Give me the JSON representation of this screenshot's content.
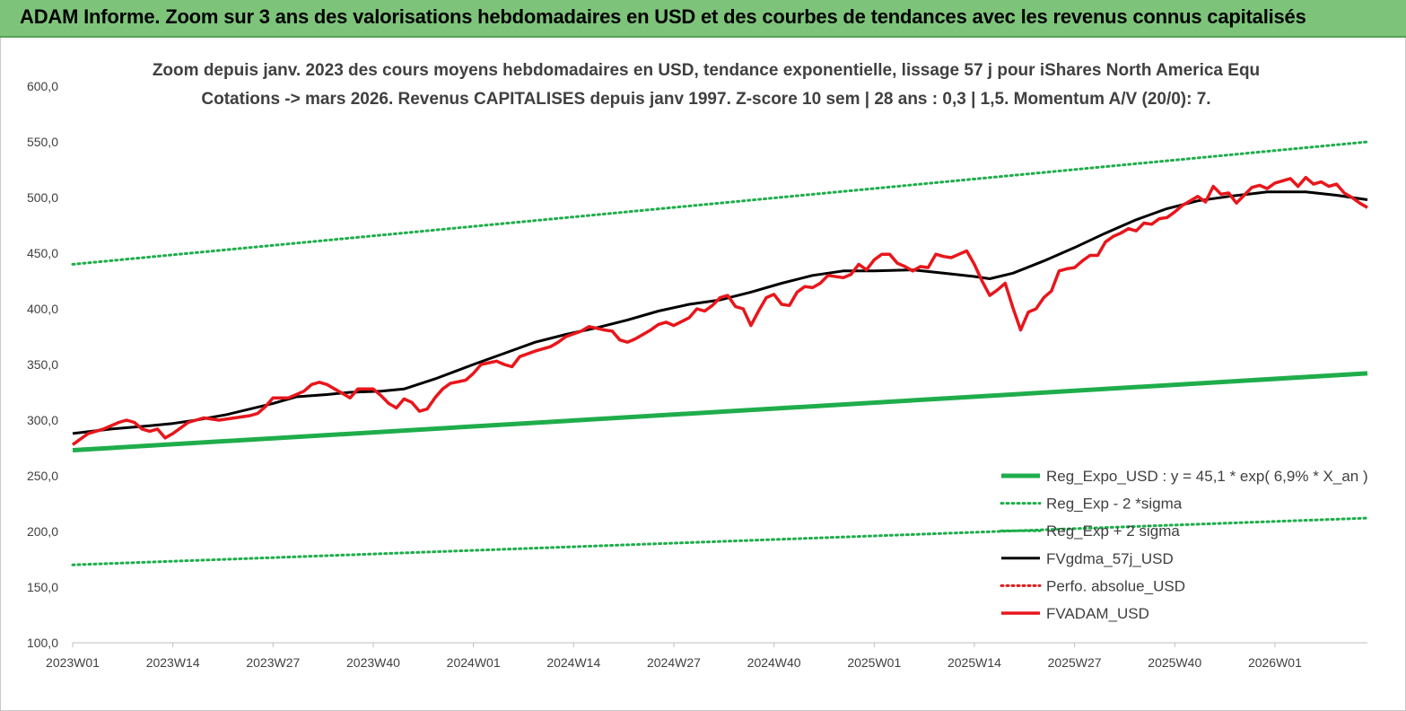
{
  "header": {
    "title": "ADAM Informe. Zoom sur 3 ans des valorisations hebdomadaires en USD et des courbes de tendances avec les revenus connus capitalisés"
  },
  "chart_data": {
    "type": "line",
    "subtitle_line1": "Zoom depuis janv. 2023 des cours moyens hebdomadaires en USD, tendance exponentielle, lissage 57 j pour iShares North America Equ",
    "subtitle_line2": "Cotations -> mars 2026. Revenus CAPITALISES depuis janv 1997. Z-score 10 sem | 28 ans : 0,3 | 1,5. Momentum A/V (20/0): 7.",
    "ylim": [
      100,
      600
    ],
    "yticks": [
      "100,0",
      "150,0",
      "200,0",
      "250,0",
      "300,0",
      "350,0",
      "400,0",
      "450,0",
      "500,0",
      "550,0",
      "600,0"
    ],
    "xticks": [
      "2023W01",
      "2023W14",
      "2023W27",
      "2023W40",
      "2024W01",
      "2024W14",
      "2024W27",
      "2024W40",
      "2025W01",
      "2025W14",
      "2025W27",
      "2025W40",
      "2026W01"
    ],
    "n_weeks": 169,
    "grid": false,
    "legend_position": "bottom-right",
    "series": [
      {
        "name": "Reg_Expo_USD : y = 45,1 * exp( 6,9% *  X_an )",
        "color": "#1fad4b",
        "style": "solid-thick",
        "points": [
          [
            0,
            273
          ],
          [
            168,
            342
          ]
        ]
      },
      {
        "name": "Reg_Exp - 2 *sigma",
        "color": "#1fad4b",
        "style": "dotted",
        "points": [
          [
            0,
            170
          ],
          [
            168,
            212
          ]
        ]
      },
      {
        "name": "Reg_Exp + 2 sigma",
        "color": "#1fad4b",
        "style": "dotted",
        "points": [
          [
            0,
            440
          ],
          [
            168,
            550
          ]
        ]
      },
      {
        "name": "FVgdma_57j_USD",
        "color": "#000000",
        "style": "solid",
        "points": [
          [
            0,
            288
          ],
          [
            5,
            292
          ],
          [
            10,
            295
          ],
          [
            13,
            297
          ],
          [
            16,
            300
          ],
          [
            20,
            305
          ],
          [
            26,
            315
          ],
          [
            29,
            321
          ],
          [
            33,
            323
          ],
          [
            36,
            325
          ],
          [
            40,
            326
          ],
          [
            43,
            328
          ],
          [
            47,
            337
          ],
          [
            52,
            350
          ],
          [
            56,
            360
          ],
          [
            60,
            370
          ],
          [
            64,
            377
          ],
          [
            68,
            383
          ],
          [
            72,
            390
          ],
          [
            76,
            398
          ],
          [
            80,
            404
          ],
          [
            84,
            408
          ],
          [
            88,
            415
          ],
          [
            92,
            423
          ],
          [
            96,
            430
          ],
          [
            100,
            434
          ],
          [
            104,
            434
          ],
          [
            109,
            435
          ],
          [
            113,
            432
          ],
          [
            117,
            429
          ],
          [
            119,
            427
          ],
          [
            122,
            432
          ],
          [
            126,
            443
          ],
          [
            130,
            455
          ],
          [
            134,
            468
          ],
          [
            138,
            480
          ],
          [
            142,
            490
          ],
          [
            146,
            497
          ],
          [
            150,
            501
          ],
          [
            155,
            505
          ],
          [
            160,
            505
          ],
          [
            164,
            502
          ],
          [
            168,
            498
          ]
        ]
      },
      {
        "name": "Perfo. absolue_USD",
        "color": "#e01b1b",
        "style": "dotted",
        "points": []
      },
      {
        "name": "FVADAM_USD",
        "color": "#e8161b",
        "style": "solid-thick",
        "points": [
          [
            0,
            278
          ],
          [
            2,
            288
          ],
          [
            4,
            292
          ],
          [
            6,
            298
          ],
          [
            7,
            300
          ],
          [
            8,
            298
          ],
          [
            9,
            292
          ],
          [
            10,
            290
          ],
          [
            11,
            292
          ],
          [
            12,
            284
          ],
          [
            13,
            288
          ],
          [
            14,
            293
          ],
          [
            15,
            298
          ],
          [
            17,
            302
          ],
          [
            19,
            300
          ],
          [
            21,
            302
          ],
          [
            23,
            304
          ],
          [
            24,
            306
          ],
          [
            25,
            312
          ],
          [
            26,
            320
          ],
          [
            28,
            320
          ],
          [
            30,
            326
          ],
          [
            31,
            332
          ],
          [
            32,
            334
          ],
          [
            33,
            332
          ],
          [
            34,
            328
          ],
          [
            35,
            324
          ],
          [
            36,
            320
          ],
          [
            37,
            328
          ],
          [
            39,
            328
          ],
          [
            40,
            322
          ],
          [
            41,
            315
          ],
          [
            42,
            311
          ],
          [
            43,
            319
          ],
          [
            44,
            316
          ],
          [
            45,
            308
          ],
          [
            46,
            310
          ],
          [
            47,
            320
          ],
          [
            48,
            328
          ],
          [
            49,
            333
          ],
          [
            51,
            336
          ],
          [
            52,
            342
          ],
          [
            53,
            350
          ],
          [
            55,
            353
          ],
          [
            56,
            350
          ],
          [
            57,
            348
          ],
          [
            58,
            357
          ],
          [
            60,
            362
          ],
          [
            62,
            366
          ],
          [
            63,
            370
          ],
          [
            64,
            375
          ],
          [
            66,
            380
          ],
          [
            67,
            384
          ],
          [
            69,
            381
          ],
          [
            70,
            380
          ],
          [
            71,
            372
          ],
          [
            72,
            370
          ],
          [
            73,
            373
          ],
          [
            75,
            381
          ],
          [
            76,
            386
          ],
          [
            77,
            388
          ],
          [
            78,
            385
          ],
          [
            80,
            392
          ],
          [
            81,
            400
          ],
          [
            82,
            398
          ],
          [
            83,
            403
          ],
          [
            84,
            410
          ],
          [
            85,
            412
          ],
          [
            86,
            402
          ],
          [
            87,
            400
          ],
          [
            88,
            385
          ],
          [
            89,
            398
          ],
          [
            90,
            410
          ],
          [
            91,
            413
          ],
          [
            92,
            404
          ],
          [
            93,
            403
          ],
          [
            94,
            415
          ],
          [
            95,
            420
          ],
          [
            96,
            419
          ],
          [
            97,
            423
          ],
          [
            98,
            430
          ],
          [
            100,
            428
          ],
          [
            101,
            431
          ],
          [
            102,
            440
          ],
          [
            103,
            435
          ],
          [
            104,
            444
          ],
          [
            105,
            449
          ],
          [
            106,
            449
          ],
          [
            107,
            441
          ],
          [
            108,
            438
          ],
          [
            109,
            434
          ],
          [
            110,
            438
          ],
          [
            111,
            437
          ],
          [
            112,
            449
          ],
          [
            113,
            447
          ],
          [
            114,
            446
          ],
          [
            115,
            449
          ],
          [
            116,
            452
          ],
          [
            117,
            440
          ],
          [
            118,
            425
          ],
          [
            119,
            412
          ],
          [
            120,
            417
          ],
          [
            121,
            423
          ],
          [
            122,
            401
          ],
          [
            123,
            381
          ],
          [
            124,
            397
          ],
          [
            125,
            400
          ],
          [
            126,
            410
          ],
          [
            127,
            416
          ],
          [
            128,
            434
          ],
          [
            129,
            436
          ],
          [
            130,
            437
          ],
          [
            131,
            443
          ],
          [
            132,
            448
          ],
          [
            133,
            448
          ],
          [
            134,
            460
          ],
          [
            135,
            465
          ],
          [
            136,
            468
          ],
          [
            137,
            472
          ],
          [
            138,
            470
          ],
          [
            139,
            477
          ],
          [
            140,
            476
          ],
          [
            141,
            481
          ],
          [
            142,
            482
          ],
          [
            143,
            487
          ],
          [
            144,
            493
          ],
          [
            145,
            497
          ],
          [
            146,
            501
          ],
          [
            147,
            496
          ],
          [
            148,
            510
          ],
          [
            149,
            503
          ],
          [
            150,
            504
          ],
          [
            151,
            495
          ],
          [
            152,
            502
          ],
          [
            153,
            509
          ],
          [
            154,
            511
          ],
          [
            155,
            508
          ],
          [
            156,
            513
          ],
          [
            157,
            515
          ],
          [
            158,
            517
          ],
          [
            159,
            510
          ],
          [
            160,
            518
          ],
          [
            161,
            512
          ],
          [
            162,
            514
          ],
          [
            163,
            510
          ],
          [
            164,
            512
          ],
          [
            165,
            504
          ],
          [
            166,
            500
          ],
          [
            167,
            495
          ],
          [
            168,
            491
          ]
        ]
      }
    ]
  }
}
